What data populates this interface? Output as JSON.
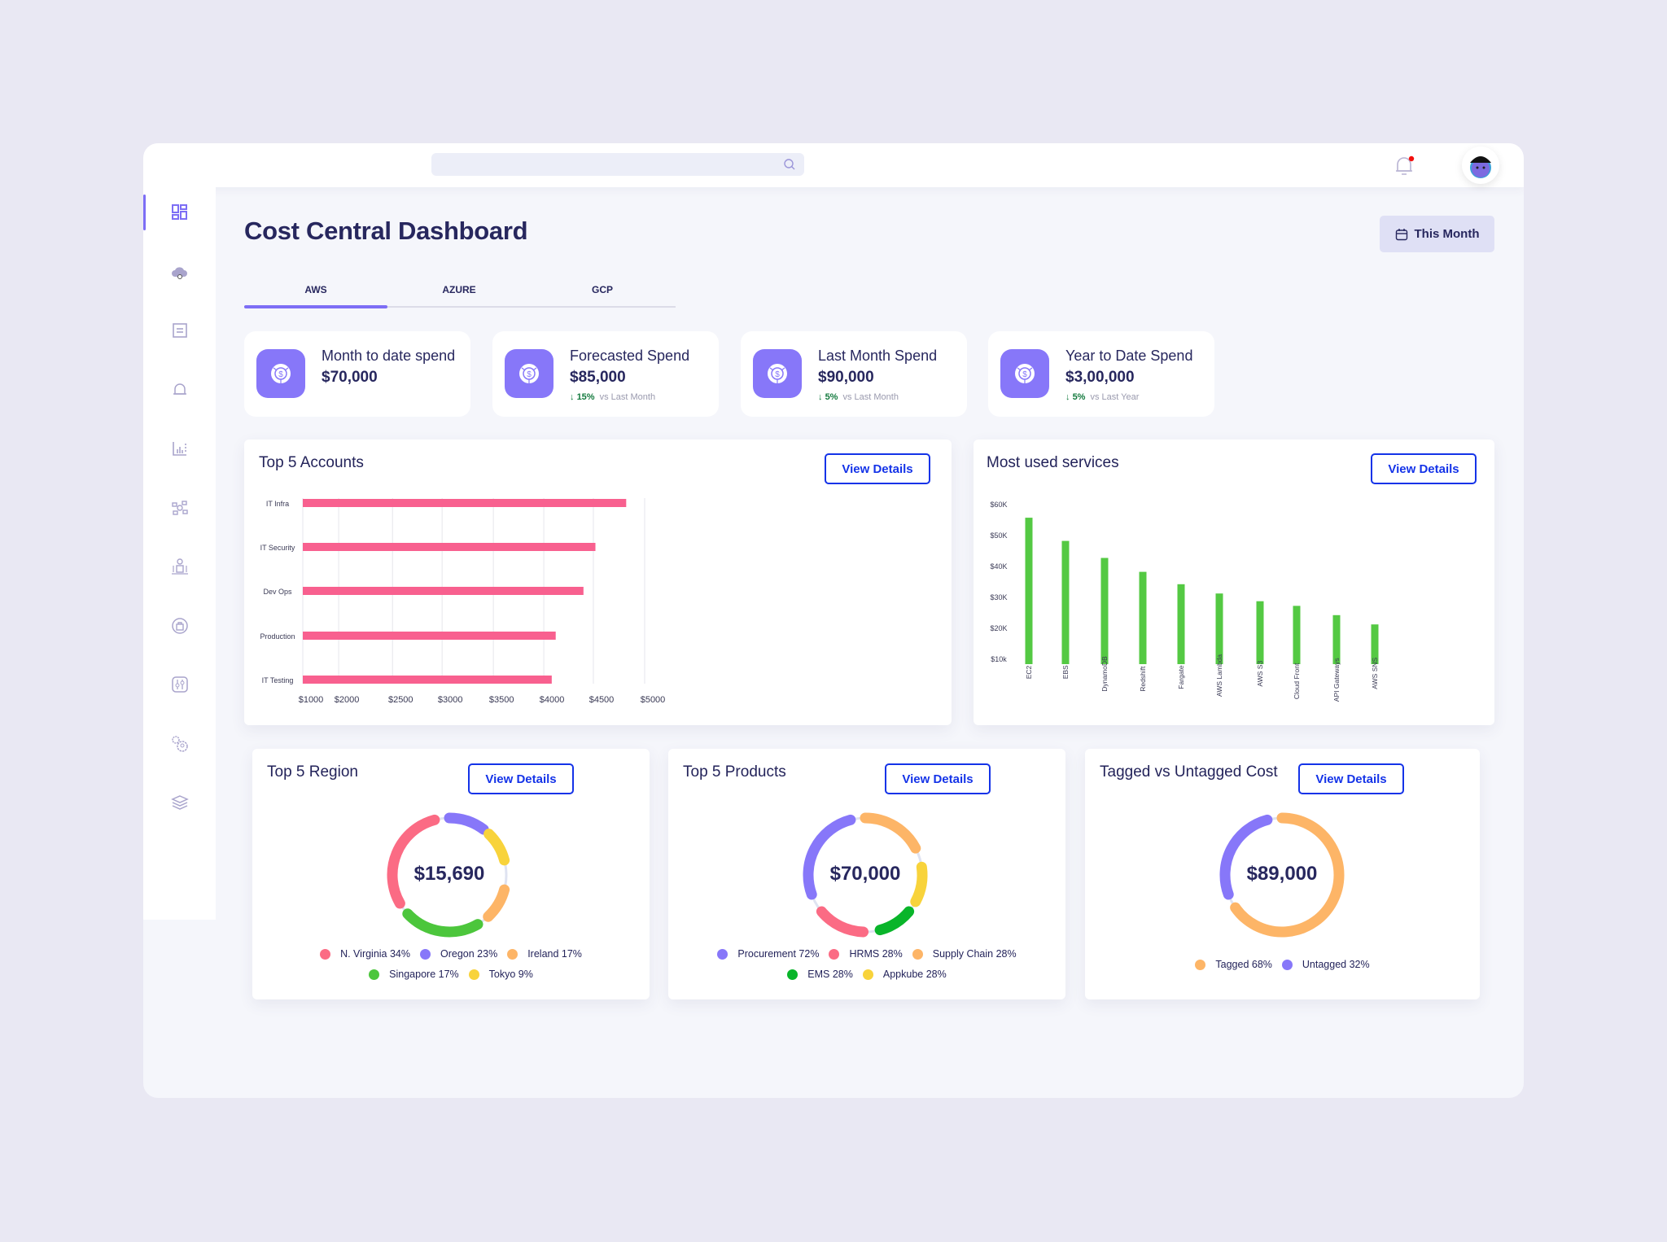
{
  "header": {
    "search_placeholder": "",
    "notification_badge": true,
    "avatar": "user-avatar"
  },
  "sidebar": {
    "items": [
      {
        "icon": "dashboard-icon",
        "active": true
      },
      {
        "icon": "cloud-settings-icon"
      },
      {
        "icon": "document-icon"
      },
      {
        "icon": "alert-bell-icon"
      },
      {
        "icon": "bar-chart-icon"
      },
      {
        "icon": "workflow-icon"
      },
      {
        "icon": "cost-distribution-icon"
      },
      {
        "icon": "security-bag-icon"
      },
      {
        "icon": "sliders-icon"
      },
      {
        "icon": "settings-user-icon"
      },
      {
        "icon": "layers-icon"
      }
    ]
  },
  "page": {
    "title": "Cost Central Dashboard",
    "date_filter": "This Month"
  },
  "tabs": [
    {
      "label": "AWS",
      "active": true
    },
    {
      "label": "AZURE"
    },
    {
      "label": "GCP"
    }
  ],
  "kpis": [
    {
      "label": "Month to date spend",
      "value": "$70,000"
    },
    {
      "label": "Forecasted Spend",
      "value": "$85,000",
      "delta": "15%",
      "delta_text": "vs Last Month",
      "direction": "down"
    },
    {
      "label": "Last Month Spend",
      "value": "$90,000",
      "delta": "5%",
      "delta_text": "vs Last Month",
      "direction": "down"
    },
    {
      "label": "Year to Date Spend",
      "value": "$3,00,000",
      "delta": "5%",
      "delta_text": "vs Last Year",
      "direction": "down"
    }
  ],
  "view_details_label": "View Details",
  "colors": {
    "accent": "#7d6ef5",
    "pink": "#f8608f",
    "green": "#54c943",
    "button_blue": "#1433e8"
  },
  "chart_data": [
    {
      "type": "bar",
      "orientation": "horizontal",
      "title": "Top 5 Accounts",
      "categories": [
        "IT Infra",
        "IT Security",
        "Dev Ops",
        "Production",
        "IT Testing"
      ],
      "values": [
        4820,
        4520,
        4400,
        4120,
        4080
      ],
      "x_ticks": [
        "$1000",
        "$2000",
        "$2500",
        "$3000",
        "$3500",
        "$4000",
        "$4500",
        "$5000"
      ],
      "x_tick_values": [
        1000,
        2000,
        2500,
        3000,
        3500,
        4000,
        4500,
        5000
      ],
      "grid": true,
      "color": "#f8608f"
    },
    {
      "type": "bar",
      "title": "Most used services",
      "categories": [
        "EC2",
        "EBS",
        "DynamoDB",
        "Redshift",
        "Fargate",
        "AWS Lambda",
        "AWS S3",
        "Cloud Front",
        "API Gateways",
        "AWS SNS"
      ],
      "values": [
        55500,
        48000,
        42500,
        38000,
        34000,
        31000,
        28500,
        27000,
        24000,
        21000
      ],
      "y_ticks": [
        "$60K",
        "$50K",
        "$40K",
        "$30K",
        "$20K",
        "$10k"
      ],
      "y_tick_values": [
        60000,
        50000,
        40000,
        30000,
        20000,
        10000
      ],
      "ylim": [
        8000,
        60000
      ],
      "grid": false,
      "color": "#54c943"
    },
    {
      "type": "pie",
      "variant": "donut",
      "title": "Top 5 Region",
      "center_label": "$15,690",
      "series": [
        {
          "name": "N. Virginia",
          "label": "N. Virginia 34%",
          "value": 34,
          "color": "#fb6b84"
        },
        {
          "name": "Oregon",
          "label": "Oregon 23%",
          "value": 23,
          "color": "#8777f9"
        },
        {
          "name": "Ireland",
          "label": "Ireland 17%",
          "value": 17,
          "color": "#fdb567"
        },
        {
          "name": "Singapore",
          "label": "Singapore 17%",
          "value": 17,
          "color": "#4cc63c"
        },
        {
          "name": "Tokyo",
          "label": "Tokyo 9%",
          "value": 9,
          "color": "#f8d33b"
        }
      ]
    },
    {
      "type": "pie",
      "variant": "donut",
      "title": "Top 5 Products",
      "center_label": "$70,000",
      "series": [
        {
          "name": "Procurement",
          "label": "Procurement 72%",
          "value": 72,
          "color": "#8777f9"
        },
        {
          "name": "HRMS",
          "label": "HRMS 28%",
          "value": 28,
          "color": "#fb6b84"
        },
        {
          "name": "Supply Chain",
          "label": "Supply Chain 28%",
          "value": 28,
          "color": "#fdb567"
        },
        {
          "name": "EMS",
          "label": "EMS 28%",
          "value": 28,
          "color": "#09b52a"
        },
        {
          "name": "Appkube",
          "label": "Appkube 28%",
          "value": 28,
          "color": "#f8d33b"
        }
      ]
    },
    {
      "type": "pie",
      "variant": "donut",
      "title": "Tagged vs Untagged Cost",
      "center_label": "$89,000",
      "series": [
        {
          "name": "Tagged",
          "label": "Tagged 68%",
          "value": 68,
          "color": "#fdb567"
        },
        {
          "name": "Untagged",
          "label": "Untagged 32%",
          "value": 32,
          "color": "#8777f9"
        }
      ]
    }
  ]
}
